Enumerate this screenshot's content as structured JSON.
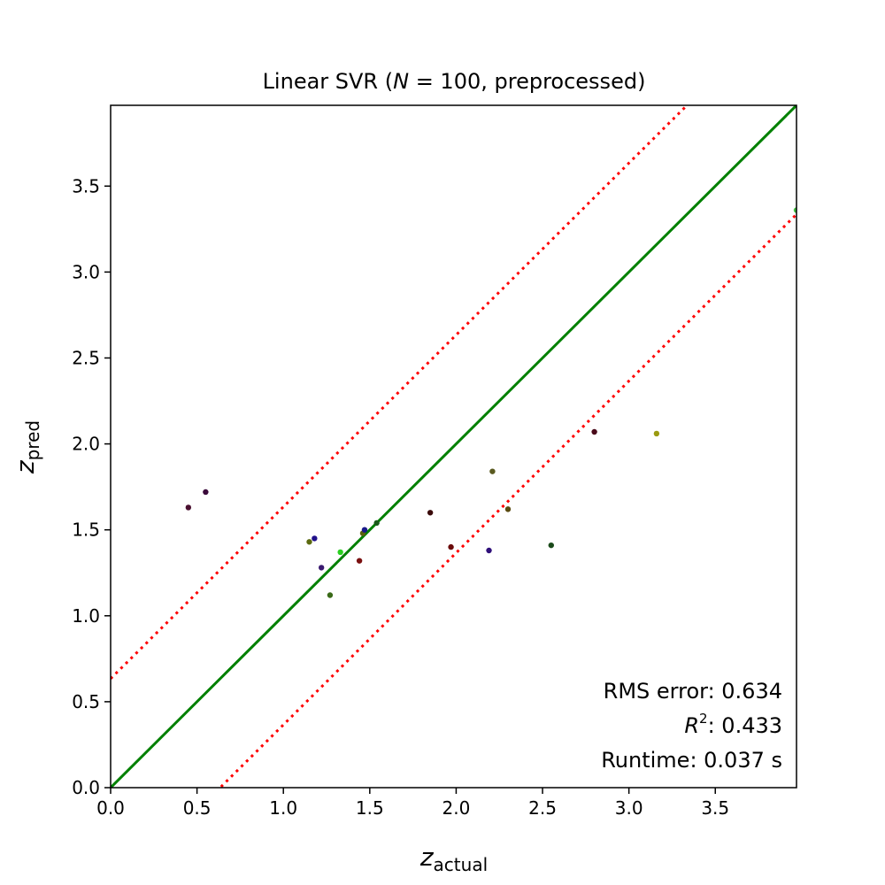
{
  "chart_data": {
    "type": "scatter",
    "title": {
      "prefix": "Linear SVR (",
      "italic": "N",
      "suffix": " = 100, preprocessed)"
    },
    "xlabel": {
      "base": "z",
      "sub": "actual"
    },
    "ylabel": {
      "base": "z",
      "sub": "pred"
    },
    "xlim": [
      0.0,
      3.97
    ],
    "ylim": [
      0.0,
      3.97
    ],
    "xticks": [
      0.0,
      0.5,
      1.0,
      1.5,
      2.0,
      2.5,
      3.0,
      3.5
    ],
    "yticks": [
      0.0,
      0.5,
      1.0,
      1.5,
      2.0,
      2.5,
      3.0,
      3.5
    ],
    "xtick_labels": [
      "0.0",
      "0.5",
      "1.0",
      "1.5",
      "2.0",
      "2.5",
      "3.0",
      "3.5"
    ],
    "ytick_labels": [
      "0.0",
      "0.5",
      "1.0",
      "1.5",
      "2.0",
      "2.5",
      "3.0",
      "3.5"
    ],
    "grid": false,
    "reference_lines": [
      {
        "kind": "identity",
        "style": "solid",
        "color": "#008000",
        "slope": 1,
        "intercept": 0
      },
      {
        "kind": "upper-bound",
        "style": "dotted",
        "color": "#ff0000",
        "slope": 1,
        "intercept": 0.634
      },
      {
        "kind": "lower-bound",
        "style": "dotted",
        "color": "#ff0000",
        "slope": 1,
        "intercept": -0.634
      }
    ],
    "points": [
      {
        "x": 0.45,
        "y": 1.63,
        "color": "#4a1030"
      },
      {
        "x": 0.55,
        "y": 1.72,
        "color": "#3a0a3a"
      },
      {
        "x": 1.15,
        "y": 1.43,
        "color": "#5c6a10"
      },
      {
        "x": 1.18,
        "y": 1.45,
        "color": "#20108a"
      },
      {
        "x": 1.22,
        "y": 1.28,
        "color": "#3a1a70"
      },
      {
        "x": 1.27,
        "y": 1.12,
        "color": "#3a6a18"
      },
      {
        "x": 1.33,
        "y": 1.37,
        "color": "#2ad020"
      },
      {
        "x": 1.44,
        "y": 1.32,
        "color": "#7a1010"
      },
      {
        "x": 1.46,
        "y": 1.48,
        "color": "#5a6010"
      },
      {
        "x": 1.47,
        "y": 1.5,
        "color": "#1a1a8a"
      },
      {
        "x": 1.54,
        "y": 1.54,
        "color": "#1a5a1a"
      },
      {
        "x": 1.85,
        "y": 1.6,
        "color": "#3a0a0a"
      },
      {
        "x": 1.97,
        "y": 1.4,
        "color": "#6a0a0a"
      },
      {
        "x": 2.19,
        "y": 1.38,
        "color": "#30107a"
      },
      {
        "x": 2.21,
        "y": 1.84,
        "color": "#5a5a20"
      },
      {
        "x": 2.3,
        "y": 1.62,
        "color": "#5a4a10"
      },
      {
        "x": 2.55,
        "y": 1.41,
        "color": "#1a4a1a"
      },
      {
        "x": 2.8,
        "y": 2.07,
        "color": "#4a0a1a"
      },
      {
        "x": 3.16,
        "y": 2.06,
        "color": "#9a9a10"
      },
      {
        "x": 3.97,
        "y": 3.36,
        "color": "#40c040"
      }
    ],
    "annotations": {
      "rms": "RMS error: 0.634",
      "r2_symbol": "R",
      "r2_exponent": "2",
      "r2_value": ": 0.433",
      "runtime": "Runtime: 0.037 s"
    }
  }
}
